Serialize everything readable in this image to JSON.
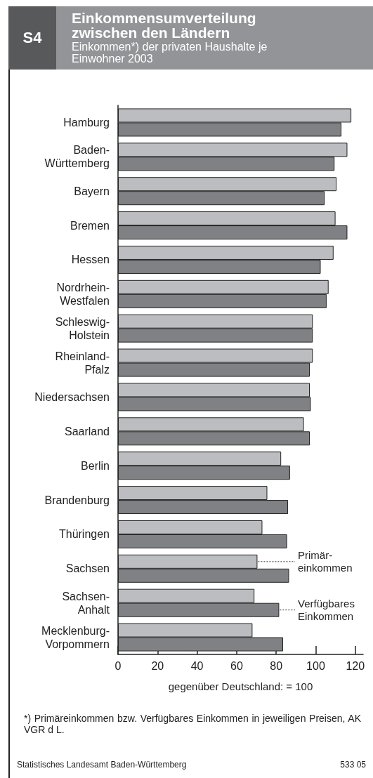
{
  "chart_data": {
    "type": "bar",
    "orientation": "horizontal",
    "title": "Einkommensumverteilung zwischen den Ländern",
    "subtitle": "Einkommen*) der privaten Haushalte je Einwohner 2003",
    "xlabel": "gegenüber Deutschland: = 100",
    "categories": [
      "Hamburg",
      "Baden-\nWürttemberg",
      "Bayern",
      "Bremen",
      "Hessen",
      "Nordrhein-\nWestfalen",
      "Schleswig-\nHolstein",
      "Rheinland-\nPfalz",
      "Niedersachsen",
      "Saarland",
      "Berlin",
      "Brandenburg",
      "Thüringen",
      "Sachsen",
      "Sachsen-\nAnhalt",
      "Mecklenburg-\nVorpommern"
    ],
    "series": [
      {
        "name": "Primär-\neinkommen",
        "color": "#bcbdc0",
        "values": [
          118,
          116,
          110.5,
          110,
          109,
          106.5,
          98.5,
          98.5,
          97,
          94,
          82.5,
          75.5,
          73,
          70.5,
          69,
          68
        ]
      },
      {
        "name": "Verfügbares\nEinkommen",
        "color": "#808184",
        "values": [
          113,
          109.5,
          104.5,
          116,
          102.5,
          105.5,
          98.5,
          97,
          97.5,
          97,
          87,
          86,
          85.5,
          86.5,
          81.5,
          83.5
        ]
      }
    ],
    "xlim": [
      0,
      124
    ],
    "xticks": [
      0,
      20,
      40,
      60,
      80,
      100,
      120
    ],
    "grid": false,
    "annotations": [
      "S4",
      "*) Primäreinkommen bzw. Verfügbares Einkommen in jeweiligen Preisen, AK VGR d L.",
      "Statistisches Landesamt Baden-Württemberg",
      "533 05"
    ]
  }
}
